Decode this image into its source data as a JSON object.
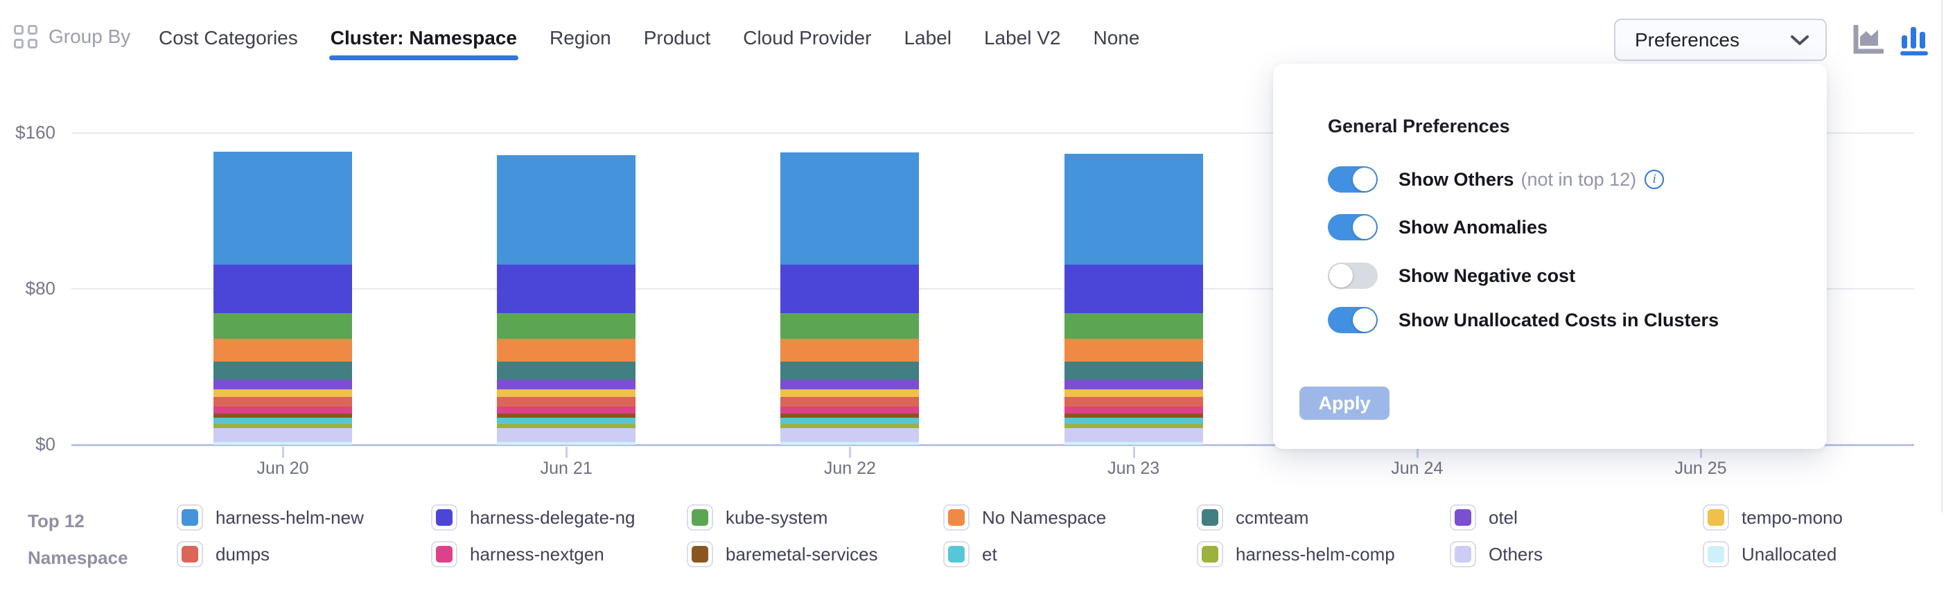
{
  "toolbar": {
    "group_by_label": "Group By",
    "tabs": [
      {
        "label": "Cost Categories",
        "active": false
      },
      {
        "label": "Cluster: Namespace",
        "active": true
      },
      {
        "label": "Region",
        "active": false
      },
      {
        "label": "Product",
        "active": false
      },
      {
        "label": "Cloud Provider",
        "active": false
      },
      {
        "label": "Label",
        "active": false
      },
      {
        "label": "Label V2",
        "active": false
      },
      {
        "label": "None",
        "active": false
      }
    ],
    "preferences_button_label": "Preferences",
    "chart_type_icons": [
      {
        "name": "area-chart-icon",
        "active": false
      },
      {
        "name": "bar-chart-icon",
        "active": true
      }
    ],
    "icons": [
      "grid-icon",
      "chevron-down-icon"
    ]
  },
  "preferences_panel": {
    "title": "General Preferences",
    "toggles": [
      {
        "label": "Show Others",
        "note": "(not in top 12)",
        "info_icon": true,
        "on": true
      },
      {
        "label": "Show Anomalies",
        "note": "",
        "info_icon": false,
        "on": true
      },
      {
        "label": "Show Negative cost",
        "note": "",
        "info_icon": false,
        "on": false
      },
      {
        "label": "Show Unallocated Costs in Clusters",
        "note": "",
        "info_icon": false,
        "on": true
      }
    ],
    "apply_label": "Apply"
  },
  "legend": {
    "header_line1": "Top 12",
    "header_line2": "Namespace"
  },
  "chart_data": {
    "type": "bar",
    "stacked": true,
    "categories": [
      "Jun 20",
      "Jun 21",
      "Jun 22",
      "Jun 23"
    ],
    "x_tick_labels": [
      "Jun 20",
      "Jun 21",
      "Jun 22",
      "Jun 23",
      "Jun 24",
      "Jun 25"
    ],
    "y_ticks": [
      {
        "label": "$0",
        "value": 0
      },
      {
        "label": "$80",
        "value": 80
      },
      {
        "label": "$160",
        "value": 160
      }
    ],
    "ylim": [
      0,
      160
    ],
    "series": [
      {
        "name": "harness-helm-new",
        "color": "#4493DB",
        "values": [
          58,
          56,
          57.5,
          57
        ]
      },
      {
        "name": "harness-delegate-ng",
        "color": "#4B46D7",
        "values": [
          25,
          25,
          25,
          25
        ]
      },
      {
        "name": "kube-system",
        "color": "#5CA653",
        "values": [
          13,
          13,
          13,
          13
        ]
      },
      {
        "name": "No Namespace",
        "color": "#EE8A43",
        "values": [
          12,
          12,
          12,
          12
        ]
      },
      {
        "name": "ccmteam",
        "color": "#417F82",
        "values": [
          9,
          9,
          9,
          9
        ]
      },
      {
        "name": "otel",
        "color": "#7B50D0",
        "values": [
          5,
          5,
          5,
          5
        ]
      },
      {
        "name": "tempo-mono",
        "color": "#EFC04A",
        "values": [
          4,
          4,
          4,
          4
        ]
      },
      {
        "name": "dumps",
        "color": "#DB6557",
        "values": [
          5,
          5,
          5,
          5
        ]
      },
      {
        "name": "harness-nextgen",
        "color": "#DE4189",
        "values": [
          3.5,
          3.5,
          3.5,
          3.5
        ]
      },
      {
        "name": "baremetal-services",
        "color": "#8A561F",
        "values": [
          2,
          2,
          2,
          2
        ]
      },
      {
        "name": "et",
        "color": "#57C6D8",
        "values": [
          3.5,
          3.5,
          3.5,
          3.5
        ]
      },
      {
        "name": "harness-helm-comp",
        "color": "#9BB33C",
        "values": [
          2,
          2,
          2,
          2
        ]
      },
      {
        "name": "Others",
        "color": "#CDCCF4",
        "values": [
          7,
          7,
          7,
          7
        ]
      },
      {
        "name": "Unallocated",
        "color": "#CFEFFA",
        "values": [
          1.5,
          1.5,
          1.5,
          1.5
        ]
      }
    ],
    "stack_order_bottom_to_top": [
      "Unallocated",
      "Others",
      "harness-helm-comp",
      "et",
      "baremetal-services",
      "harness-nextgen",
      "dumps",
      "tempo-mono",
      "otel",
      "ccmteam",
      "No Namespace",
      "kube-system",
      "harness-delegate-ng",
      "harness-helm-new"
    ]
  },
  "ui_colors": {
    "tab_underline": "#3674D9",
    "accent_blue": "#2D77E0",
    "toggle_on": "#4190E2",
    "apply_bg": "#9DB8E8",
    "icon_gray": "#9B9CAF"
  }
}
